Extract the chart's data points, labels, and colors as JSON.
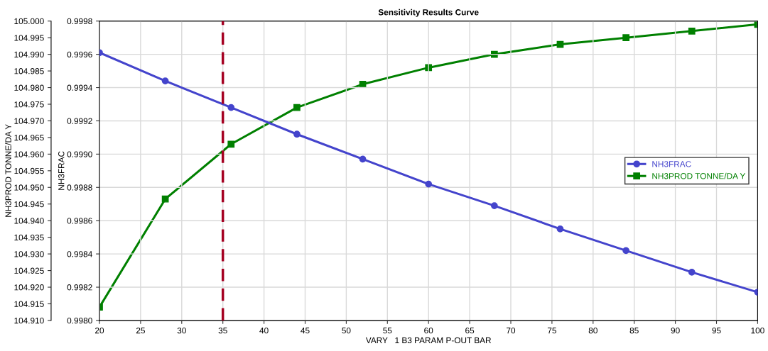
{
  "chart_data": {
    "type": "line",
    "title": "Sensitivity Results Curve",
    "xlabel": "VARY   1 B3 PARAM P-OUT BAR",
    "ylabel": "NH3FRAC",
    "y2label": "NH3PROD TONNE/DA Y",
    "x": [
      20,
      28,
      36,
      44,
      52,
      60,
      68,
      76,
      84,
      92,
      100
    ],
    "series": [
      {
        "name": "NH3FRAC",
        "color": "#4444cc",
        "marker": "circle",
        "values": [
          0.99961,
          0.99944,
          0.99928,
          0.99912,
          0.99897,
          0.99882,
          0.99869,
          0.99855,
          0.99842,
          0.99829,
          0.99817
        ]
      },
      {
        "name": "NH3PROD TONNE/DA Y",
        "color": "#008000",
        "marker": "square",
        "axis": "y2",
        "values": [
          104.914,
          104.9465,
          104.963,
          104.974,
          104.981,
          104.986,
          104.99,
          104.993,
          104.995,
          104.997,
          104.999
        ]
      }
    ],
    "xlim": [
      20,
      100
    ],
    "xticks": [
      20,
      25,
      30,
      35,
      40,
      45,
      50,
      55,
      60,
      65,
      70,
      75,
      80,
      85,
      90,
      95,
      100
    ],
    "ylim": [
      0.998,
      0.9998
    ],
    "yticks": [
      {
        "value": 0.998,
        "label": "0.9980"
      },
      {
        "value": 0.9982,
        "label": "0.9982"
      },
      {
        "value": 0.9984,
        "label": "0.9984"
      },
      {
        "value": 0.9986,
        "label": "0.9986"
      },
      {
        "value": 0.9988,
        "label": "0.9988"
      },
      {
        "value": 0.999,
        "label": "0.9990"
      },
      {
        "value": 0.9992,
        "label": "0.9992"
      },
      {
        "value": 0.9994,
        "label": "0.9994"
      },
      {
        "value": 0.9996,
        "label": "0.9996"
      },
      {
        "value": 0.9998,
        "label": "0.9998"
      }
    ],
    "y2lim": [
      104.91,
      105.0
    ],
    "y2ticks": [
      {
        "value": 104.91,
        "label": "104.910"
      },
      {
        "value": 104.915,
        "label": "104.915"
      },
      {
        "value": 104.92,
        "label": "104.920"
      },
      {
        "value": 104.925,
        "label": "104.925"
      },
      {
        "value": 104.93,
        "label": "104.930"
      },
      {
        "value": 104.935,
        "label": "104.935"
      },
      {
        "value": 104.94,
        "label": "104.940"
      },
      {
        "value": 104.945,
        "label": "104.945"
      },
      {
        "value": 104.95,
        "label": "104.950"
      },
      {
        "value": 104.955,
        "label": "104.955"
      },
      {
        "value": 104.96,
        "label": "104.960"
      },
      {
        "value": 104.965,
        "label": "104.965"
      },
      {
        "value": 104.97,
        "label": "104.970"
      },
      {
        "value": 104.975,
        "label": "104.975"
      },
      {
        "value": 104.98,
        "label": "104.980"
      },
      {
        "value": 104.985,
        "label": "104.985"
      },
      {
        "value": 104.99,
        "label": "104.990"
      },
      {
        "value": 104.995,
        "label": "104.995"
      },
      {
        "value": 105.0,
        "label": "105.000"
      }
    ],
    "ref_lines": [
      {
        "axis": "x",
        "value": 35,
        "color": "#a50021",
        "line_style": "dashed"
      }
    ],
    "grid": true,
    "legend": "right",
    "line_style": "solid"
  }
}
